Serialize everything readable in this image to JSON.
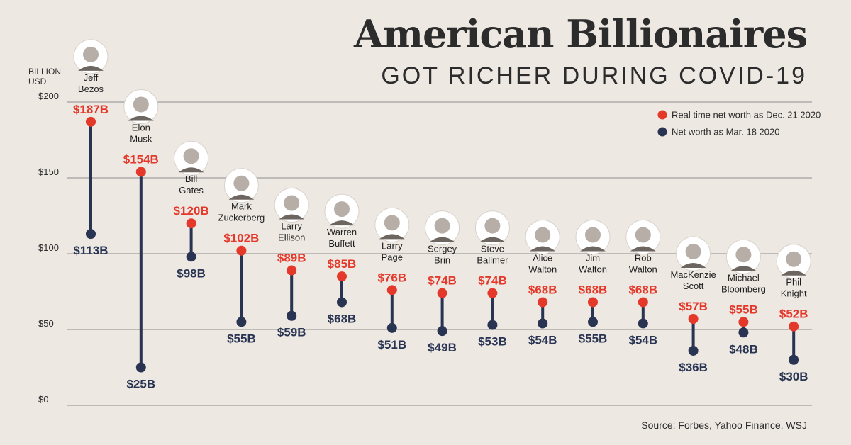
{
  "header": {
    "title": "American Billionaires",
    "subtitle": "GOT RICHER DURING COVID-19",
    "unit_label": "BILLION USD",
    "source": "Source: Forbes, Yahoo Finance, WSJ"
  },
  "colors": {
    "background": "#eee8e3",
    "dec_2020": "#e4392a",
    "mar_2020": "#283452",
    "grid": "#8c8c8c",
    "text": "#2c2c2c"
  },
  "chart_data": {
    "type": "dumbbell",
    "ylim": [
      0,
      200
    ],
    "yticks": [
      0,
      50,
      100,
      150,
      200
    ],
    "ytick_labels": [
      "$0",
      "$50",
      "$100",
      "$150",
      "$200"
    ],
    "grid": true,
    "legend_position": "top-right",
    "series": [
      {
        "key": "dec",
        "name": "Real time net worth as Dec. 21 2020",
        "color": "#e4392a",
        "labels": [
          "$187B",
          "$154B",
          "$120B",
          "$102B",
          "$89B",
          "$85B",
          "$76B",
          "$74B",
          "$74B",
          "$68B",
          "$68B",
          "$68B",
          "$57B",
          "$55B",
          "$52B"
        ]
      },
      {
        "key": "mar",
        "name": "Net worth as Mar. 18 2020",
        "color": "#283452",
        "labels": [
          "$113B",
          "$25B",
          "$98B",
          "$55B",
          "$59B",
          "$68B",
          "$51B",
          "$49B",
          "$53B",
          "$54B",
          "$55B",
          "$54B",
          "$36B",
          "$48B",
          "$30B"
        ]
      }
    ],
    "people": [
      {
        "name": [
          "Jeff",
          "Bezos"
        ],
        "dec": 187,
        "mar": 113
      },
      {
        "name": [
          "Elon",
          "Musk"
        ],
        "dec": 154,
        "mar": 25
      },
      {
        "name": [
          "Bill",
          "Gates"
        ],
        "dec": 120,
        "mar": 98
      },
      {
        "name": [
          "Mark",
          "Zuckerberg"
        ],
        "dec": 102,
        "mar": 55
      },
      {
        "name": [
          "Larry",
          "Ellison"
        ],
        "dec": 89,
        "mar": 59
      },
      {
        "name": [
          "Warren",
          "Buffett"
        ],
        "dec": 85,
        "mar": 68
      },
      {
        "name": [
          "Larry",
          "Page"
        ],
        "dec": 76,
        "mar": 51
      },
      {
        "name": [
          "Sergey",
          "Brin"
        ],
        "dec": 74,
        "mar": 49
      },
      {
        "name": [
          "Steve",
          "Ballmer"
        ],
        "dec": 74,
        "mar": 53
      },
      {
        "name": [
          "Alice",
          "Walton"
        ],
        "dec": 68,
        "mar": 54
      },
      {
        "name": [
          "Jim",
          "Walton"
        ],
        "dec": 68,
        "mar": 55
      },
      {
        "name": [
          "Rob",
          "Walton"
        ],
        "dec": 68,
        "mar": 54
      },
      {
        "name": [
          "MacKenzie",
          "Scott"
        ],
        "dec": 57,
        "mar": 36
      },
      {
        "name": [
          "Michael",
          "Bloomberg"
        ],
        "dec": 55,
        "mar": 48
      },
      {
        "name": [
          "Phil",
          "Knight"
        ],
        "dec": 52,
        "mar": 30
      }
    ]
  }
}
